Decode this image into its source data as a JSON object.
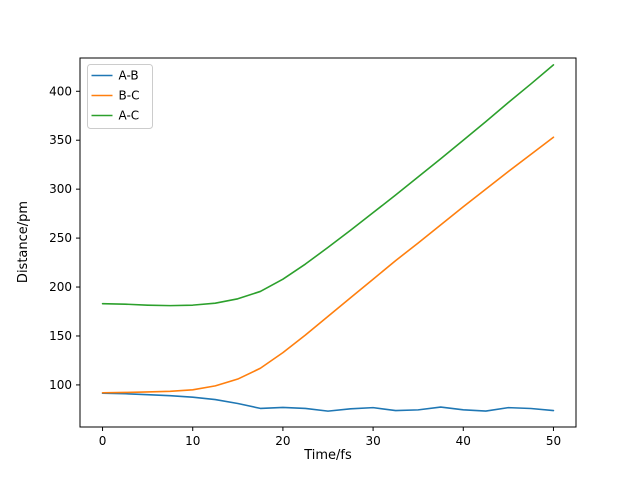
{
  "figure": {
    "background": "#ffffff",
    "axes_edge_color": "#000000",
    "legend_frame_color": "#cccccc"
  },
  "chart_data": {
    "type": "line",
    "title": "",
    "xlabel": "Time/fs",
    "ylabel": "Distance/pm",
    "xlim": [
      -2.5,
      52.5
    ],
    "ylim": [
      57,
      434
    ],
    "xticks": [
      0,
      10,
      20,
      30,
      40,
      50
    ],
    "yticks": [
      100,
      150,
      200,
      250,
      300,
      350,
      400
    ],
    "grid": false,
    "legend": {
      "position": "upper-left",
      "entries": [
        "A-B",
        "B-C",
        "A-C"
      ]
    },
    "x": [
      0,
      2.5,
      5,
      7.5,
      10,
      12.5,
      15,
      17.5,
      20,
      22.5,
      25,
      27.5,
      30,
      32.5,
      35,
      37.5,
      40,
      42.5,
      45,
      47.5,
      50
    ],
    "series": [
      {
        "name": "A-B",
        "color": "#1f77b4",
        "values": [
          91.5,
          91,
          90,
          89,
          87.5,
          85,
          81,
          76,
          77,
          76,
          73.2,
          75.6,
          76.8,
          73.8,
          74.5,
          77.4,
          74.6,
          73.3,
          76.8,
          75.9,
          73.8
        ]
      },
      {
        "name": "B-C",
        "color": "#ff7f0e",
        "values": [
          92,
          92.3,
          92.8,
          93.5,
          95,
          99,
          106,
          117,
          133,
          151,
          170,
          189,
          208,
          227,
          245,
          263.5,
          282,
          300,
          318,
          335.5,
          353
        ]
      },
      {
        "name": "A-C",
        "color": "#2ca02c",
        "values": [
          183,
          182.5,
          181.5,
          181,
          181.5,
          183.5,
          188,
          195.5,
          208,
          223.5,
          240.5,
          258,
          276,
          294,
          312.5,
          331,
          350,
          369,
          388.5,
          407.5,
          427
        ]
      }
    ]
  }
}
